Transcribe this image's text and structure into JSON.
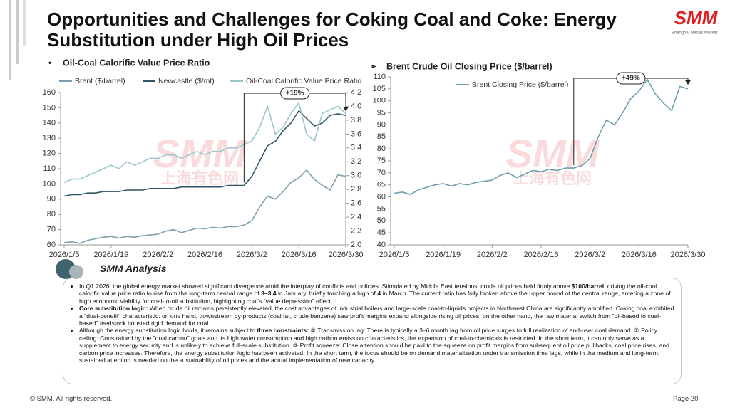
{
  "header": {
    "title": "Opportunities and Challenges for Coking Coal and Coke: Energy Substitution under High Oil Prices",
    "logo": "SMM",
    "logo_sub": "Shanghai Metals Market"
  },
  "watermark": {
    "logo": "SMM",
    "text": "上海有色网"
  },
  "chart_data": [
    {
      "type": "line",
      "title": "Oil-Coal Calorific Value Price Ratio",
      "x": [
        "2026/1/5",
        "2026/1/7",
        "2026/1/9",
        "2026/1/12",
        "2026/1/14",
        "2026/1/16",
        "2026/1/19",
        "2026/1/21",
        "2026/1/23",
        "2026/1/26",
        "2026/1/28",
        "2026/1/30",
        "2026/2/2",
        "2026/2/4",
        "2026/2/6",
        "2026/2/9",
        "2026/2/11",
        "2026/2/13",
        "2026/2/16",
        "2026/2/18",
        "2026/2/20",
        "2026/2/23",
        "2026/2/25",
        "2026/2/27",
        "2026/3/2",
        "2026/3/4",
        "2026/3/6",
        "2026/3/9",
        "2026/3/11",
        "2026/3/13",
        "2026/3/16",
        "2026/3/18",
        "2026/3/20",
        "2026/3/23",
        "2026/3/25",
        "2026/3/27",
        "2026/3/30"
      ],
      "xticks": [
        "2026/1/5",
        "2026/1/19",
        "2026/2/2",
        "2026/2/16",
        "2026/3/2",
        "2026/3/16",
        "2026/3/30"
      ],
      "series": [
        {
          "name": "Brent ($/barrel)",
          "color": "#7f9fae",
          "values": [
            61.5,
            62,
            61,
            63,
            64,
            65,
            65.5,
            64.5,
            65.5,
            65,
            66,
            66.5,
            67,
            69,
            70,
            68,
            69.5,
            71,
            70.5,
            71.5,
            71,
            72,
            72,
            73,
            76,
            85,
            92,
            90,
            95,
            101,
            104,
            109,
            103,
            99,
            96,
            106,
            105
          ]
        },
        {
          "name": "Newcastle ($/mt)",
          "color": "#2f5467",
          "values": [
            92,
            93,
            93,
            94,
            94,
            95,
            95,
            95,
            96,
            96,
            96,
            97,
            97,
            97,
            97,
            98,
            98,
            98,
            98,
            98,
            98,
            99,
            99,
            99,
            105,
            115,
            125,
            128,
            135,
            140,
            148,
            143,
            138,
            140,
            145,
            146,
            145
          ]
        },
        {
          "name": "Oil-Coal Calorific Value Price Ratio",
          "color": "#9cc6cc",
          "axis": "y2",
          "values": [
            2.9,
            2.95,
            2.95,
            3.0,
            3.05,
            3.1,
            3.15,
            3.1,
            3.2,
            3.15,
            3.2,
            3.25,
            3.25,
            3.3,
            3.3,
            3.25,
            3.3,
            3.35,
            3.3,
            3.35,
            3.35,
            3.4,
            3.4,
            3.45,
            3.5,
            3.7,
            4.0,
            3.6,
            3.7,
            3.9,
            4.05,
            3.6,
            3.5,
            3.9,
            3.95,
            4.0,
            3.9
          ]
        }
      ],
      "ylim": [
        60,
        160
      ],
      "yticks": [
        60,
        70,
        80,
        90,
        100,
        110,
        120,
        130,
        140,
        150,
        160
      ],
      "y2lim": [
        2.0,
        4.2
      ],
      "y2ticks": [
        {
          "value": 2,
          "label": "2.0"
        },
        2.2,
        2.4,
        2.6,
        2.8,
        {
          "value": 3,
          "label": "3.0"
        },
        3.2,
        3.4,
        3.6,
        3.8,
        {
          "value": 4,
          "label": "4.0"
        },
        4.2
      ],
      "annotation": "+19%"
    },
    {
      "type": "line",
      "title": "Brent Crude Oil Closing Price ($/barrel)",
      "x": [
        "2026/1/5",
        "2026/1/7",
        "2026/1/9",
        "2026/1/12",
        "2026/1/14",
        "2026/1/16",
        "2026/1/19",
        "2026/1/21",
        "2026/1/23",
        "2026/1/26",
        "2026/1/28",
        "2026/1/30",
        "2026/2/2",
        "2026/2/4",
        "2026/2/6",
        "2026/2/9",
        "2026/2/11",
        "2026/2/13",
        "2026/2/16",
        "2026/2/18",
        "2026/2/20",
        "2026/2/23",
        "2026/2/25",
        "2026/2/27",
        "2026/3/2",
        "2026/3/4",
        "2026/3/6",
        "2026/3/9",
        "2026/3/11",
        "2026/3/13",
        "2026/3/16",
        "2026/3/18",
        "2026/3/20",
        "2026/3/23",
        "2026/3/25",
        "2026/3/27",
        "2026/3/30"
      ],
      "xticks": [
        "2026/1/5",
        "2026/1/19",
        "2026/2/2",
        "2026/2/16",
        "2026/3/2",
        "2026/3/16",
        "2026/3/30"
      ],
      "series": [
        {
          "name": "Brent Closing Price ($/barrel)",
          "color": "#6f9fae",
          "values": [
            61.5,
            62,
            61,
            63,
            64,
            65,
            65.5,
            64.5,
            65.5,
            65,
            66,
            66.5,
            67,
            69,
            70,
            68,
            69.5,
            71,
            70.5,
            71.5,
            71,
            72,
            72,
            73,
            76,
            85,
            92,
            90,
            95,
            101,
            104,
            109,
            103,
            99,
            96,
            106,
            105
          ]
        }
      ],
      "ylim": [
        40,
        110
      ],
      "yticks": [
        40,
        45,
        50,
        55,
        60,
        65,
        70,
        75,
        80,
        85,
        90,
        95,
        100,
        105,
        110
      ],
      "annotation": "+49%"
    }
  ],
  "analysis": {
    "title": "SMM Analysis",
    "paragraphs": [
      [
        {
          "text": "In Q1 2026, the global energy market showed significant divergence amid the interplay of conflicts and policies. Stimulated by Middle East tensions, crude oil prices held firmly above "
        },
        {
          "text": "$100/barrel",
          "bold": true
        },
        {
          "text": ", driving the oil-coal calorific value price ratio to rise from the long-term central range of "
        },
        {
          "text": "3–3.4",
          "bold": true
        },
        {
          "text": " in January, briefly touching a high of "
        },
        {
          "text": "4",
          "bold": true
        },
        {
          "text": " in March. The current ratio has fully broken above the upper bound of the central range, entering a zone of high economic viability for coal-to-oil substitution, highlighting coal's \"value depression\" effect."
        }
      ],
      [
        {
          "text": "Core substitution logic:",
          "bold": true
        },
        {
          "text": "  When crude oil remains persistently elevated, the cost advantages of industrial boilers and large-scale coal-to-liquids projects in Northwest China are significantly amplified. Coking coal exhibited a \"dual-benefit\" characteristic: on one hand, downstream by-products (coal tar, crude benzene) saw profit margins expand alongside rising oil prices; on the other hand, the raw material switch from \"oil-based to coal-based\" feedstock boosted rigid demand for coal."
        }
      ],
      [
        {
          "text": "Although the energy substitution logic holds, it remains subject to "
        },
        {
          "text": "three constraints:",
          "bold": true
        },
        {
          "text": " ① Transmission lag: There is typically a 3–6 month lag from oil price surges to full realization of end-user coal demand. ② Policy ceiling: Constrained by the \"dual carbon\" goals and its high water consumption and high carbon emission characteristics, the expansion of coal-to-chemicals is restricted. In the short term, it can only serve as a supplement to energy security and is unlikely to achieve full-scale substitution. ③ Profit squeeze: Close attention should be paid to the squeeze on profit margins from subsequent oil price pullbacks, coal price rises, and carbon price increases. Therefore, the energy substitution logic has been activated. In the short term, the focus should be on demand materialization under transmission time lags, while in the medium and long-term, sustained attention is needed on the sustainability of oil prices and the actual implementation of new capacity."
        }
      ]
    ]
  },
  "footer": {
    "copyright": "© SMM. All rights reserved.",
    "page": "Page 20"
  }
}
